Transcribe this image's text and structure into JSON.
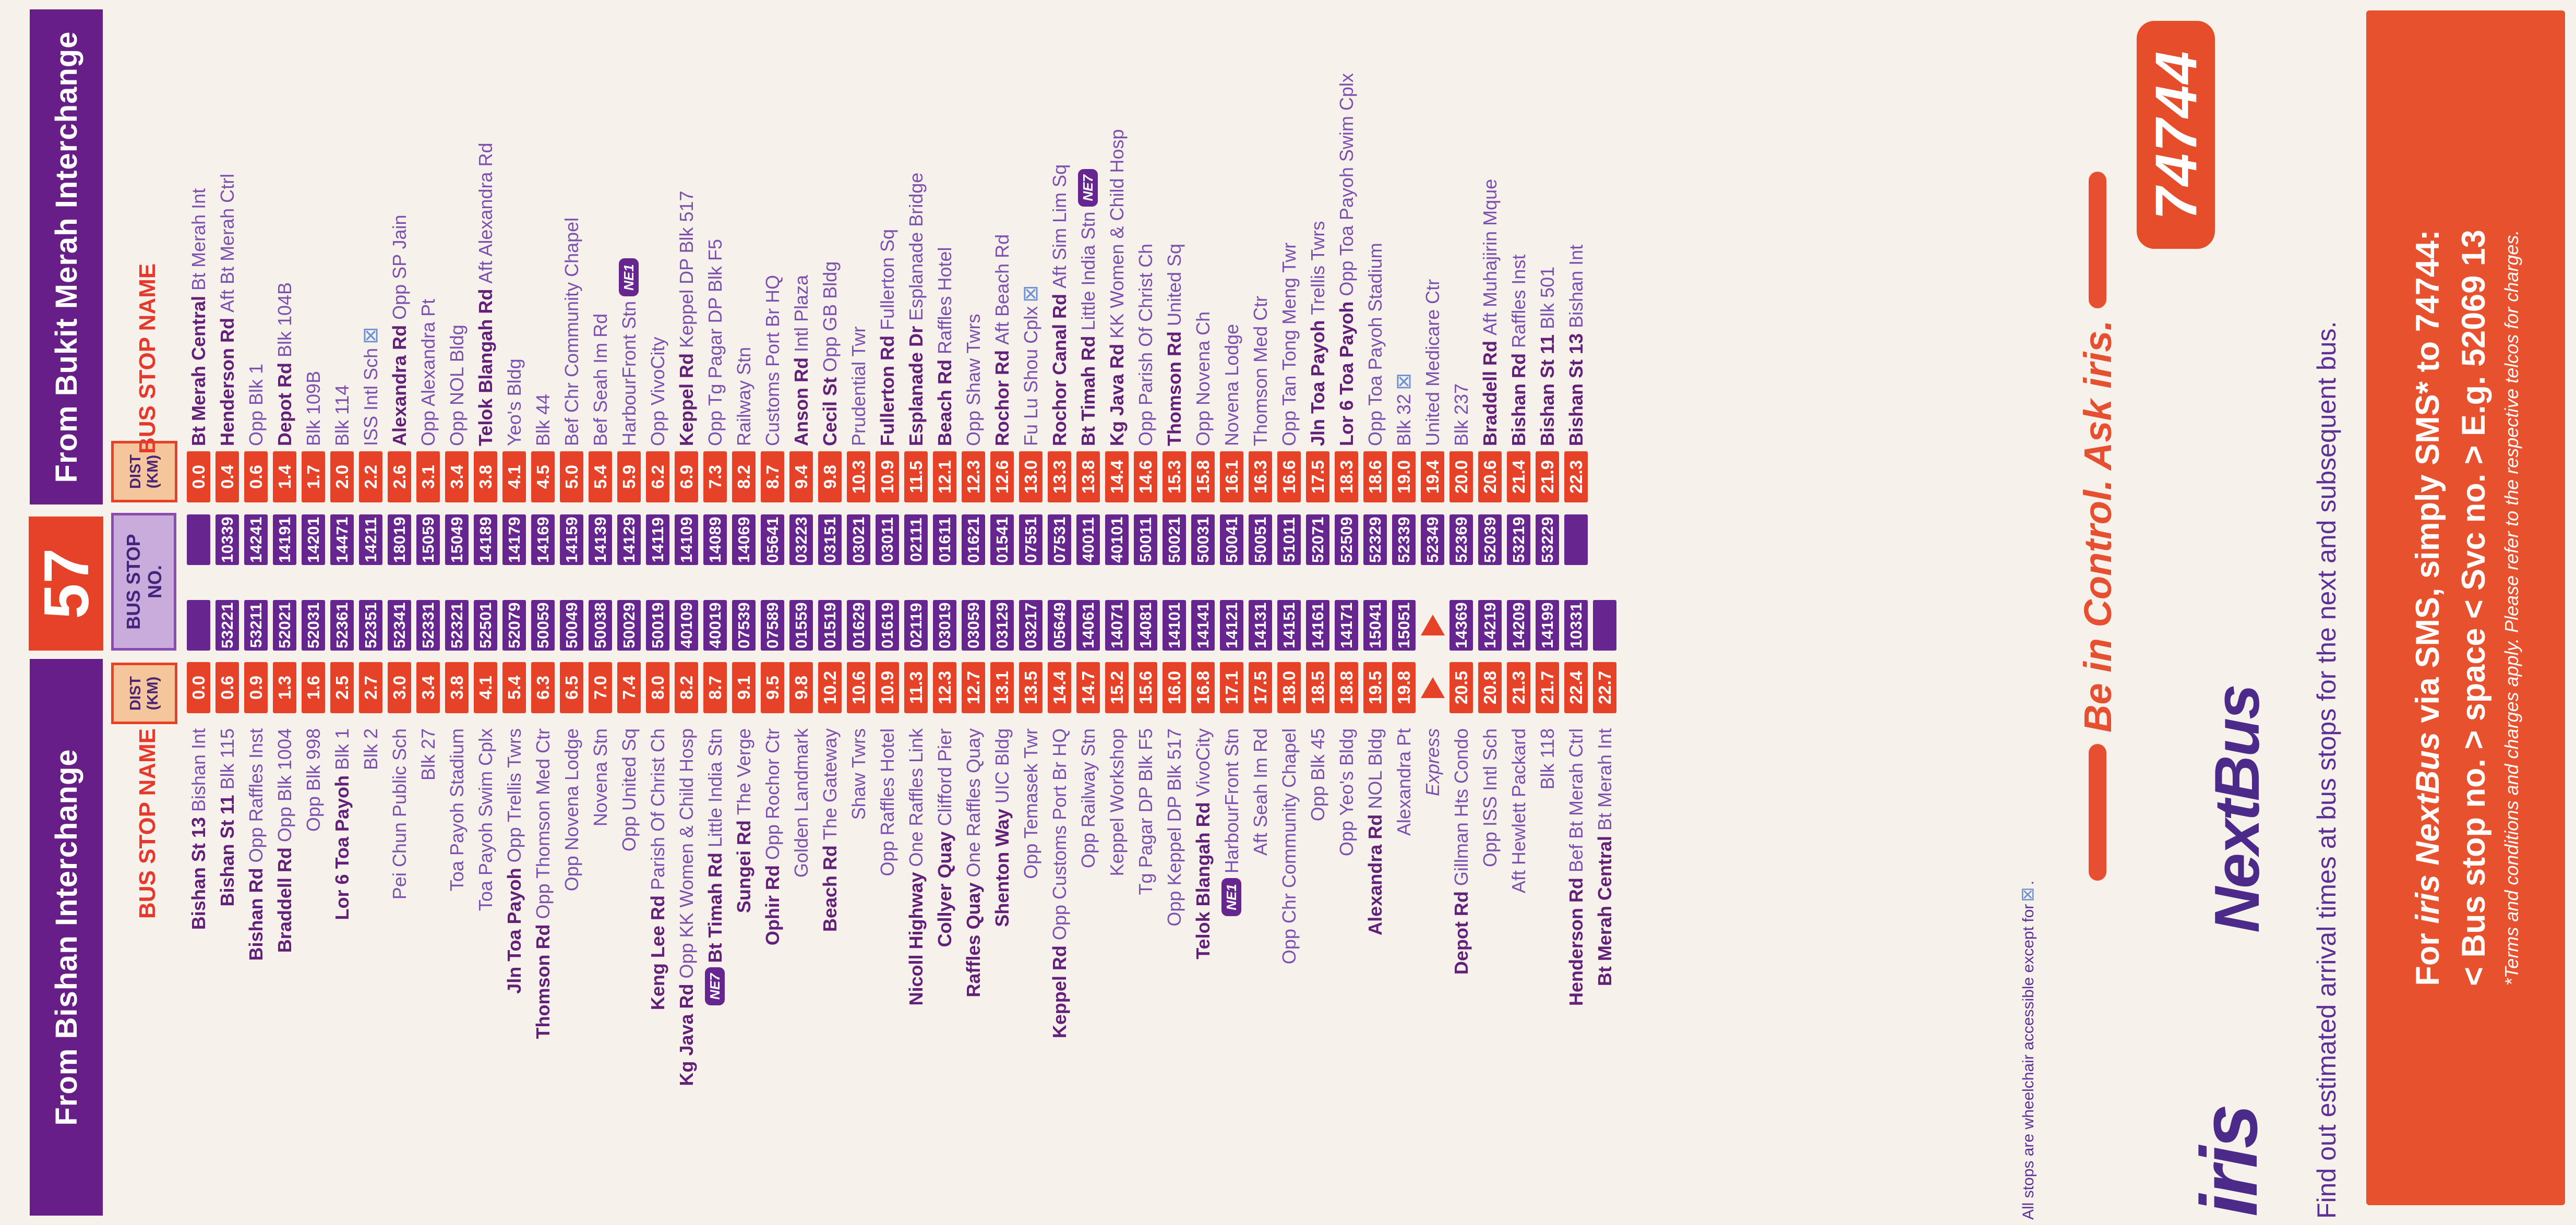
{
  "service": {
    "number": "57"
  },
  "headers": {
    "from_bishan": "From Bishan Interchange",
    "from_bukit_merah": "From Bukit Merah Interchange",
    "bus_stop_name": "BUS STOP NAME",
    "dist_line1": "DIST",
    "dist_line2": "(KM)",
    "no_line1": "BUS STOP",
    "no_line2": "NO."
  },
  "labels": {
    "express": "Express",
    "wheelchair_symbol": "⊠"
  },
  "footnote": {
    "text": "All stops are wheelchair accessible except for",
    "symbol": "⊠",
    "period": "."
  },
  "directions": {
    "from_bishan": {
      "stops": [
        {
          "b": "Bishan St 13",
          "r": "Bishan Int",
          "d": "0.0",
          "n": ""
        },
        {
          "b": "Bishan St 11",
          "r": "Blk 115",
          "d": "0.6",
          "n": "53221"
        },
        {
          "b": "Bishan Rd",
          "r": "Opp Raffles Inst",
          "d": "0.9",
          "n": "53211"
        },
        {
          "b": "Braddell Rd",
          "r": "Opp Blk 1004",
          "d": "1.3",
          "n": "52021"
        },
        {
          "b": "",
          "r": "Opp Blk 998",
          "d": "1.6",
          "n": "52031"
        },
        {
          "b": "Lor 6 Toa Payoh",
          "r": "Blk 1",
          "d": "2.5",
          "n": "52361"
        },
        {
          "b": "",
          "r": "Blk 2",
          "d": "2.7",
          "n": "52351"
        },
        {
          "b": "",
          "r": "Pei Chun Public Sch",
          "d": "3.0",
          "n": "52341"
        },
        {
          "b": "",
          "r": "Blk 27",
          "d": "3.4",
          "n": "52331"
        },
        {
          "b": "",
          "r": "Toa Payoh Stadium",
          "d": "3.8",
          "n": "52321"
        },
        {
          "b": "",
          "r": "Toa Payoh Swim Cplx",
          "d": "4.1",
          "n": "52501"
        },
        {
          "b": "Jln Toa Payoh",
          "r": "Opp Trellis Twrs",
          "d": "5.4",
          "n": "52079"
        },
        {
          "b": "Thomson Rd",
          "r": "Opp Thomson Med Ctr",
          "d": "6.3",
          "n": "50059"
        },
        {
          "b": "",
          "r": "Opp Novena Lodge",
          "d": "6.5",
          "n": "50049"
        },
        {
          "b": "",
          "r": "Novena Stn",
          "d": "7.0",
          "n": "50038"
        },
        {
          "b": "",
          "r": "Opp United Sq",
          "d": "7.4",
          "n": "50029"
        },
        {
          "b": "Keng Lee Rd",
          "r": "Parish Of Christ Ch",
          "d": "8.0",
          "n": "50019"
        },
        {
          "b": "Kg Java Rd",
          "r": "Opp KK Women & Child Hosp",
          "d": "8.2",
          "n": "40109"
        },
        {
          "b": "Bt Timah Rd",
          "r": "Little India Stn",
          "d": "8.7",
          "n": "40019",
          "tag": "NE7"
        },
        {
          "b": "Sungei Rd",
          "r": "The Verge",
          "d": "9.1",
          "n": "07539"
        },
        {
          "b": "Ophir Rd",
          "r": "Opp Rochor Ctr",
          "d": "9.5",
          "n": "07589"
        },
        {
          "b": "",
          "r": "Golden Landmark",
          "d": "9.8",
          "n": "01559"
        },
        {
          "b": "Beach Rd",
          "r": "The Gateway",
          "d": "10.2",
          "n": "01519"
        },
        {
          "b": "",
          "r": "Shaw Twrs",
          "d": "10.6",
          "n": "01629"
        },
        {
          "b": "",
          "r": "Opp Raffles Hotel",
          "d": "10.9",
          "n": "01619"
        },
        {
          "b": "Nicoll Highway",
          "r": "One Raffles Link",
          "d": "11.3",
          "n": "02119"
        },
        {
          "b": "Collyer Quay",
          "r": "Clifford Pier",
          "d": "12.3",
          "n": "03019"
        },
        {
          "b": "Raffles Quay",
          "r": "One Raffles Quay",
          "d": "12.7",
          "n": "03059"
        },
        {
          "b": "Shenton Way",
          "r": "UIC Bldg",
          "d": "13.1",
          "n": "03129"
        },
        {
          "b": "",
          "r": "Opp Temasek Twr",
          "d": "13.5",
          "n": "03217"
        },
        {
          "b": "Keppel Rd",
          "r": "Opp Customs Port Br HQ",
          "d": "14.4",
          "n": "05649"
        },
        {
          "b": "",
          "r": "Opp Railway Stn",
          "d": "14.7",
          "n": "14061"
        },
        {
          "b": "",
          "r": "Keppel Workshop",
          "d": "15.2",
          "n": "14071"
        },
        {
          "b": "",
          "r": "Tg Pagar DP Blk F5",
          "d": "15.6",
          "n": "14081"
        },
        {
          "b": "",
          "r": "Opp Keppel DP Blk 517",
          "d": "16.0",
          "n": "14101"
        },
        {
          "b": "Telok Blangah Rd",
          "r": "VivoCity",
          "d": "16.8",
          "n": "14141"
        },
        {
          "b": "",
          "r": "HarbourFront Stn",
          "d": "17.1",
          "n": "14121",
          "tag": "NE1"
        },
        {
          "b": "",
          "r": "Aft Seah Im Rd",
          "d": "17.5",
          "n": "14131"
        },
        {
          "b": "",
          "r": "Opp Chr Community Chapel",
          "d": "18.0",
          "n": "14151"
        },
        {
          "b": "",
          "r": "Opp Blk 45",
          "d": "18.5",
          "n": "14161"
        },
        {
          "b": "",
          "r": "Opp Yeo's Bldg",
          "d": "18.8",
          "n": "14171"
        },
        {
          "b": "Alexandra Rd",
          "r": "NOL Bldg",
          "d": "19.5",
          "n": "15041"
        },
        {
          "b": "",
          "r": "Alexandra Pt",
          "d": "19.8",
          "n": "15051"
        },
        {
          "e": true
        },
        {
          "b": "Depot Rd",
          "r": "Gillman Hts Condo",
          "d": "20.5",
          "n": "14369"
        },
        {
          "b": "",
          "r": "Opp ISS Intl Sch",
          "d": "20.8",
          "n": "14219"
        },
        {
          "b": "",
          "r": "Aft Hewlett Packard",
          "d": "21.3",
          "n": "14209"
        },
        {
          "b": "",
          "r": "Blk 118",
          "d": "21.7",
          "n": "14199"
        },
        {
          "b": "Henderson Rd",
          "r": "Bef Bt Merah Ctrl",
          "d": "22.4",
          "n": "10331"
        },
        {
          "b": "Bt Merah Central",
          "r": "Bt Merah Int",
          "d": "22.7",
          "n": ""
        }
      ]
    },
    "from_bukit_merah": {
      "stops": [
        {
          "b": "Bt Merah Central",
          "r": "Bt Merah Int",
          "d": "0.0",
          "n": ""
        },
        {
          "b": "Henderson Rd",
          "r": "Aft Bt Merah Ctrl",
          "d": "0.4",
          "n": "10339"
        },
        {
          "b": "",
          "r": "Opp Blk 1",
          "d": "0.6",
          "n": "14241"
        },
        {
          "b": "Depot Rd",
          "r": "Blk 104B",
          "d": "1.4",
          "n": "14191"
        },
        {
          "b": "",
          "r": "Blk 109B",
          "d": "1.7",
          "n": "14201"
        },
        {
          "b": "",
          "r": "Blk 114",
          "d": "2.0",
          "n": "14471"
        },
        {
          "b": "",
          "r": "ISS Intl Sch",
          "d": "2.2",
          "n": "14211",
          "wc": true
        },
        {
          "b": "Alexandra Rd",
          "r": "Opp SP Jain",
          "d": "2.6",
          "n": "18019"
        },
        {
          "b": "",
          "r": "Opp Alexandra Pt",
          "d": "3.1",
          "n": "15059"
        },
        {
          "b": "",
          "r": "Opp NOL Bldg",
          "d": "3.4",
          "n": "15049"
        },
        {
          "b": "Telok Blangah Rd",
          "r": "Aft Alexandra Rd",
          "d": "3.8",
          "n": "14189"
        },
        {
          "b": "",
          "r": "Yeo's Bldg",
          "d": "4.1",
          "n": "14179"
        },
        {
          "b": "",
          "r": "Blk 44",
          "d": "4.5",
          "n": "14169"
        },
        {
          "b": "",
          "r": "Bef Chr Community Chapel",
          "d": "5.0",
          "n": "14159"
        },
        {
          "b": "",
          "r": "Bef Seah Im Rd",
          "d": "5.4",
          "n": "14139"
        },
        {
          "b": "",
          "r": "HarbourFront Stn",
          "d": "5.9",
          "n": "14129",
          "tag": "NE1"
        },
        {
          "b": "",
          "r": "Opp VivoCity",
          "d": "6.2",
          "n": "14119"
        },
        {
          "b": "Keppel Rd",
          "r": "Keppel DP Blk 517",
          "d": "6.9",
          "n": "14109"
        },
        {
          "b": "",
          "r": "Opp Tg Pagar DP Blk F5",
          "d": "7.3",
          "n": "14089"
        },
        {
          "b": "",
          "r": "Railway Stn",
          "d": "8.2",
          "n": "14069"
        },
        {
          "b": "",
          "r": "Customs Port Br HQ",
          "d": "8.7",
          "n": "05641"
        },
        {
          "b": "Anson Rd",
          "r": "Intl Plaza",
          "d": "9.4",
          "n": "03223"
        },
        {
          "b": "Cecil St",
          "r": "Opp GB Bldg",
          "d": "9.8",
          "n": "03151"
        },
        {
          "b": "",
          "r": "Prudential Twr",
          "d": "10.3",
          "n": "03021"
        },
        {
          "b": "Fullerton Rd",
          "r": "Fullerton Sq",
          "d": "10.9",
          "n": "03011"
        },
        {
          "b": "Esplanade Dr",
          "r": "Esplanade Bridge",
          "d": "11.5",
          "n": "02111"
        },
        {
          "b": "Beach Rd",
          "r": "Raffles Hotel",
          "d": "12.1",
          "n": "01611"
        },
        {
          "b": "",
          "r": "Opp Shaw Twrs",
          "d": "12.3",
          "n": "01621"
        },
        {
          "b": "Rochor Rd",
          "r": "Aft Beach Rd",
          "d": "12.6",
          "n": "01541"
        },
        {
          "b": "",
          "r": "Fu Lu Shou Cplx",
          "d": "13.0",
          "n": "07551",
          "wc": true
        },
        {
          "b": "Rochor Canal Rd",
          "r": "Aft Sim Lim Sq",
          "d": "13.3",
          "n": "07531"
        },
        {
          "b": "Bt Timah Rd",
          "r": "Little India Stn",
          "d": "13.8",
          "n": "40011",
          "tag": "NE7"
        },
        {
          "b": "Kg Java Rd",
          "r": "KK Women & Child Hosp",
          "d": "14.4",
          "n": "40101"
        },
        {
          "b": "",
          "r": "Opp Parish Of Christ Ch",
          "d": "14.6",
          "n": "50011"
        },
        {
          "b": "Thomson Rd",
          "r": "United Sq",
          "d": "15.3",
          "n": "50021"
        },
        {
          "b": "",
          "r": "Opp Novena Ch",
          "d": "15.8",
          "n": "50031"
        },
        {
          "b": "",
          "r": "Novena Lodge",
          "d": "16.1",
          "n": "50041"
        },
        {
          "b": "",
          "r": "Thomson Med Ctr",
          "d": "16.3",
          "n": "50051"
        },
        {
          "b": "",
          "r": "Opp Tan Tong Meng Twr",
          "d": "16.6",
          "n": "51011"
        },
        {
          "b": "Jln Toa Payoh",
          "r": "Trellis Twrs",
          "d": "17.5",
          "n": "52071"
        },
        {
          "b": "Lor 6 Toa Payoh",
          "r": "Opp Toa Payoh Swim Cplx",
          "d": "18.3",
          "n": "52509"
        },
        {
          "b": "",
          "r": "Opp Toa Payoh Stadium",
          "d": "18.6",
          "n": "52329"
        },
        {
          "b": "",
          "r": "Blk 32",
          "d": "19.0",
          "n": "52339",
          "wc": true
        },
        {
          "b": "",
          "r": "United Medicare Ctr",
          "d": "19.4",
          "n": "52349"
        },
        {
          "b": "",
          "r": "Blk 237",
          "d": "20.0",
          "n": "52369"
        },
        {
          "b": "Braddell Rd",
          "r": "Aft Muhajirin Mque",
          "d": "20.6",
          "n": "52039"
        },
        {
          "b": "Bishan Rd",
          "r": "Raffles Inst",
          "d": "21.4",
          "n": "53219"
        },
        {
          "b": "Bishan St 11",
          "r": "Blk 501",
          "d": "21.9",
          "n": "53229"
        },
        {
          "b": "Bishan St 13",
          "r": "Bishan Int",
          "d": "22.3",
          "n": ""
        }
      ]
    }
  },
  "ad": {
    "tagline": "Be in Control. Ask iris.",
    "brand_iris": "iris",
    "brand_nextbus": "NextBus",
    "code": "74744",
    "find_line": "Find out estimated arrival times at bus stops for the next and subsequent bus.",
    "sms_line1_pre": "For ",
    "sms_line1_em": "iris NextBus",
    "sms_line1_post": " via SMS, simply SMS* to 74744:",
    "sms_line2": "< Bus stop no. > space < Svc no. > E.g. 52069  13",
    "terms": "*Terms and conditions and charges apply. Please refer to the respective telcos for charges."
  },
  "colors": {
    "bar_purple": "#671e87",
    "box_purple": "#67258f",
    "scarlet": "#e64228",
    "lavender": "#c9abdc",
    "peach": "#f5c69b",
    "name_purple": "#7d4fae",
    "name_bold_purple": "#641f78",
    "header_red": "#e6392b",
    "ad_orange": "#e8512e",
    "iris_purple": "#4b2a8a",
    "wheelchair_blue": "#6f92d4"
  }
}
